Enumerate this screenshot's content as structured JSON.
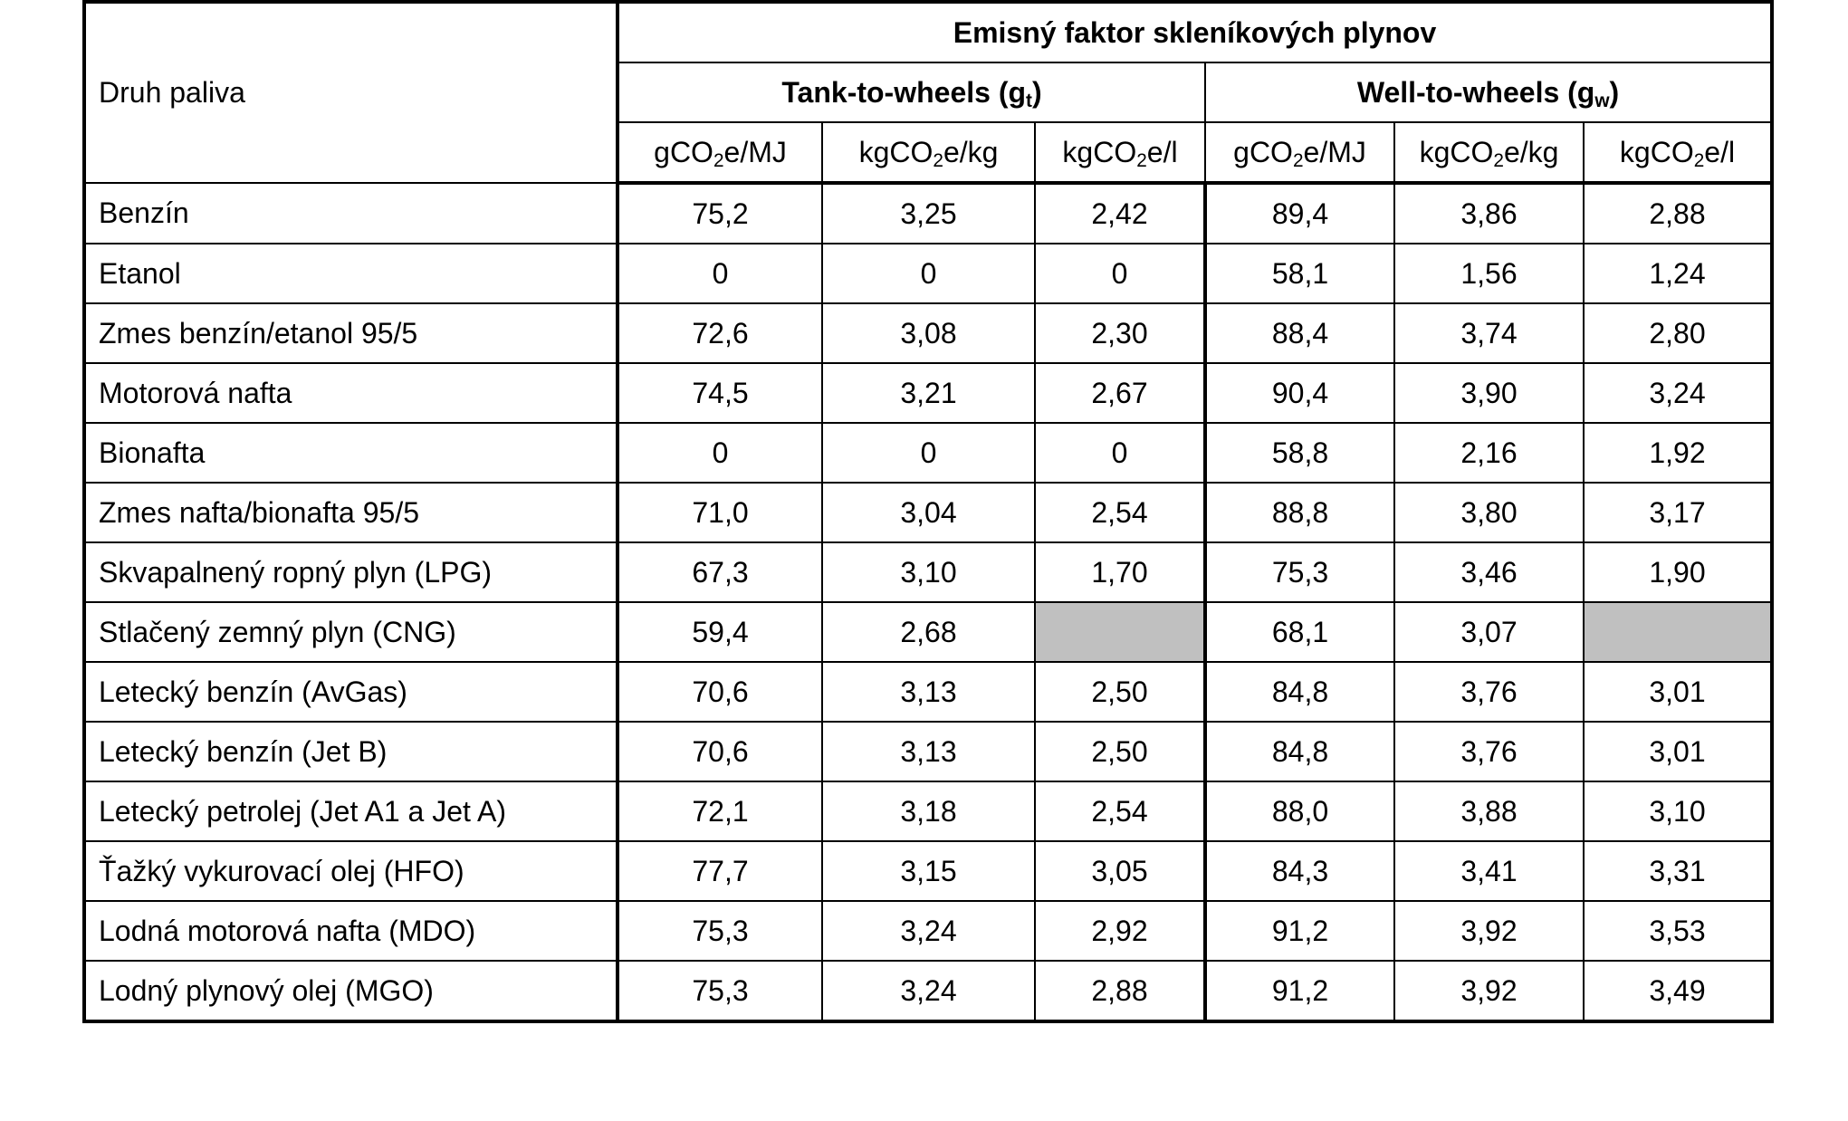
{
  "table": {
    "row_header": "Druh paliva",
    "group_header": "Emisný faktor skleníkových plynov",
    "tank_to_wheels": {
      "label": "Tank-to-wheels (g",
      "sub": "t",
      "close": ")"
    },
    "well_to_wheels": {
      "label": "Well-to-wheels (g",
      "sub": "w",
      "close": ")"
    },
    "units": [
      {
        "pre": "gCO",
        "sub": "2",
        "post": "e/MJ"
      },
      {
        "pre": "kgCO",
        "sub": "2",
        "post": "e/kg"
      },
      {
        "pre": "kgCO",
        "sub": "2",
        "post": "e/l"
      },
      {
        "pre": "gCO",
        "sub": "2",
        "post": "e/MJ"
      },
      {
        "pre": "kgCO",
        "sub": "2",
        "post": "e/kg"
      },
      {
        "pre": "kgCO",
        "sub": "2",
        "post": "e/l"
      }
    ],
    "rows": [
      {
        "fuel": "Benzín",
        "values": [
          "75,2",
          "3,25",
          "2,42",
          "89,4",
          "3,86",
          "2,88"
        ]
      },
      {
        "fuel": "Etanol",
        "values": [
          "0",
          "0",
          "0",
          "58,1",
          "1,56",
          "1,24"
        ]
      },
      {
        "fuel": "Zmes benzín/etanol 95/5",
        "values": [
          "72,6",
          "3,08",
          "2,30",
          "88,4",
          "3,74",
          "2,80"
        ]
      },
      {
        "fuel": "Motorová nafta",
        "values": [
          "74,5",
          "3,21",
          "2,67",
          "90,4",
          "3,90",
          "3,24"
        ]
      },
      {
        "fuel": "Bionafta",
        "values": [
          "0",
          "0",
          "0",
          "58,8",
          "2,16",
          "1,92"
        ]
      },
      {
        "fuel": "Zmes nafta/bionafta 95/5",
        "values": [
          "71,0",
          "3,04",
          "2,54",
          "88,8",
          "3,80",
          "3,17"
        ]
      },
      {
        "fuel": "Skvapalnený ropný plyn (LPG)",
        "values": [
          "67,3",
          "3,10",
          "1,70",
          "75,3",
          "3,46",
          "1,90"
        ]
      },
      {
        "fuel": "Stlačený zemný plyn (CNG)",
        "values": [
          "59,4",
          "2,68",
          "",
          "68,1",
          "3,07",
          ""
        ]
      },
      {
        "fuel": "Letecký benzín (AvGas)",
        "values": [
          "70,6",
          "3,13",
          "2,50",
          "84,8",
          "3,76",
          "3,01"
        ]
      },
      {
        "fuel": "Letecký benzín (Jet B)",
        "values": [
          "70,6",
          "3,13",
          "2,50",
          "84,8",
          "3,76",
          "3,01"
        ]
      },
      {
        "fuel": "Letecký petrolej (Jet A1 a Jet A)",
        "values": [
          "72,1",
          "3,18",
          "2,54",
          "88,0",
          "3,88",
          "3,10"
        ]
      },
      {
        "fuel": "Ťažký vykurovací olej (HFO)",
        "values": [
          "77,7",
          "3,15",
          "3,05",
          "84,3",
          "3,41",
          "3,31"
        ]
      },
      {
        "fuel": "Lodná motorová nafta (MDO)",
        "values": [
          "75,3",
          "3,24",
          "2,92",
          "91,2",
          "3,92",
          "3,53"
        ]
      },
      {
        "fuel": "Lodný plynový olej (MGO)",
        "values": [
          "75,3",
          "3,24",
          "2,88",
          "91,2",
          "3,92",
          "3,49"
        ]
      }
    ],
    "na_color": "#c0c0c0"
  }
}
